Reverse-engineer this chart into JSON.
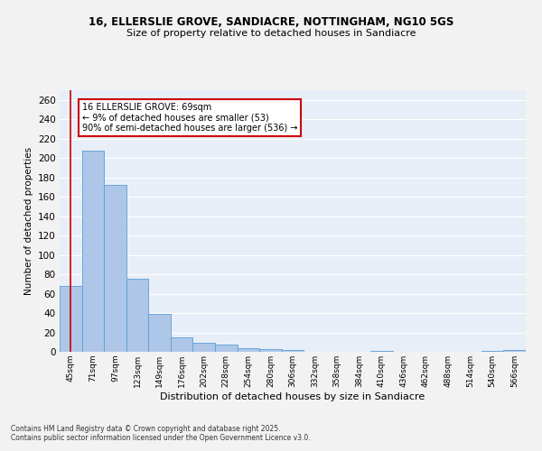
{
  "title_line1": "16, ELLERSLIE GROVE, SANDIACRE, NOTTINGHAM, NG10 5GS",
  "title_line2": "Size of property relative to detached houses in Sandiacre",
  "xlabel": "Distribution of detached houses by size in Sandiacre",
  "ylabel": "Number of detached properties",
  "bin_labels": [
    "45sqm",
    "71sqm",
    "97sqm",
    "123sqm",
    "149sqm",
    "176sqm",
    "202sqm",
    "228sqm",
    "254sqm",
    "280sqm",
    "306sqm",
    "332sqm",
    "358sqm",
    "384sqm",
    "410sqm",
    "436sqm",
    "462sqm",
    "488sqm",
    "514sqm",
    "540sqm",
    "566sqm"
  ],
  "bar_values": [
    68,
    208,
    172,
    75,
    39,
    15,
    9,
    7,
    4,
    3,
    2,
    0,
    0,
    0,
    1,
    0,
    0,
    0,
    0,
    1,
    2
  ],
  "bar_color": "#aec6e8",
  "bar_edge_color": "#5a9fd4",
  "vline_color": "#cc0000",
  "annotation_text": "16 ELLERSLIE GROVE: 69sqm\n← 9% of detached houses are smaller (53)\n90% of semi-detached houses are larger (536) →",
  "annotation_box_color": "#ffffff",
  "annotation_box_edge": "#cc0000",
  "background_color": "#e8eef8",
  "grid_color": "#ffffff",
  "fig_background": "#f2f2f2",
  "ylim": [
    0,
    270
  ],
  "yticks": [
    0,
    20,
    40,
    60,
    80,
    100,
    120,
    140,
    160,
    180,
    200,
    220,
    240,
    260
  ],
  "footer_line1": "Contains HM Land Registry data © Crown copyright and database right 2025.",
  "footer_line2": "Contains public sector information licensed under the Open Government Licence v3.0."
}
